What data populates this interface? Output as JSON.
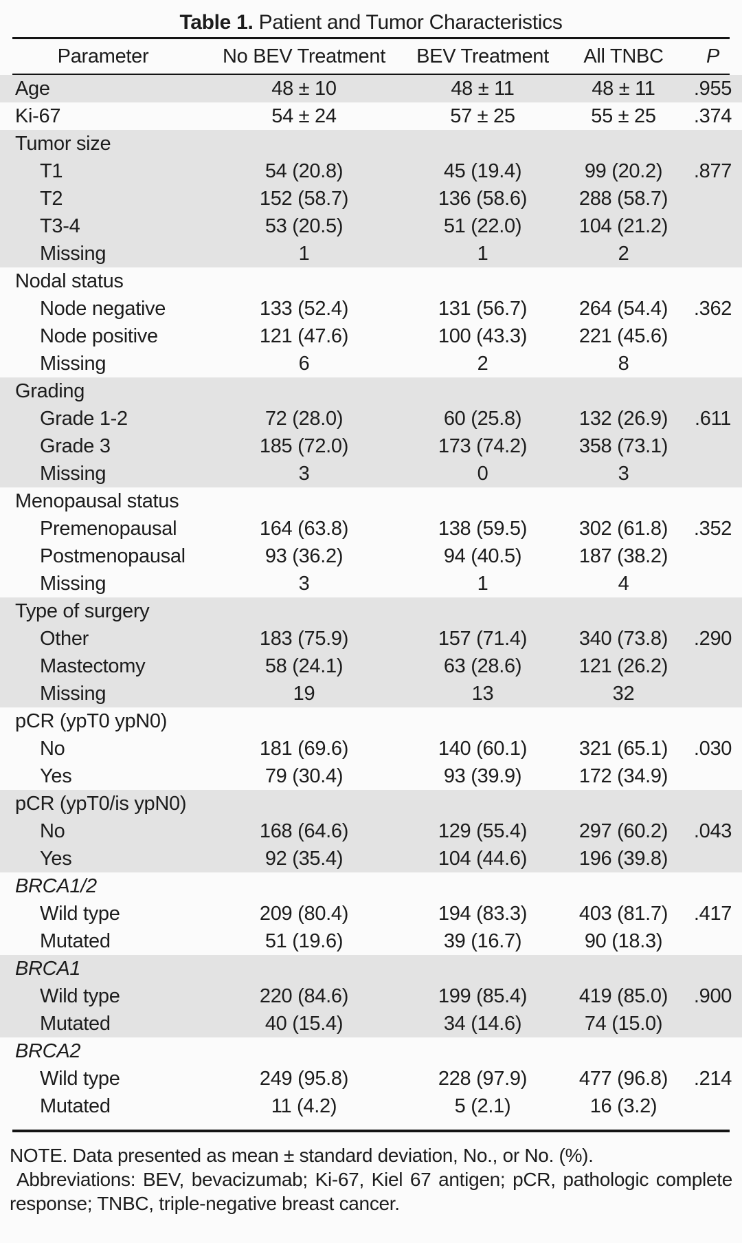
{
  "title": {
    "label": "Table 1.",
    "text": "Patient and Tumor Characteristics"
  },
  "columns": [
    "Parameter",
    "No BEV Treatment",
    "BEV Treatment",
    "All TNBC",
    "P"
  ],
  "colors": {
    "row_shade": "#e3e3e3",
    "text": "#1c1c1c",
    "rule": "#141414",
    "background": "#fbfbfb"
  },
  "rows": [
    {
      "label": "Age",
      "indent": 0,
      "italic": false,
      "shaded": true,
      "values": [
        "48 ± 10",
        "48 ± 11",
        "48 ± 11"
      ],
      "p": ".955"
    },
    {
      "label": "Ki-67",
      "indent": 0,
      "italic": false,
      "shaded": false,
      "values": [
        "54 ± 24",
        "57 ± 25",
        "55 ± 25"
      ],
      "p": ".374"
    },
    {
      "label": "Tumor size",
      "indent": 0,
      "italic": false,
      "shaded": true,
      "values": [
        "",
        "",
        ""
      ],
      "p": ""
    },
    {
      "label": "T1",
      "indent": 1,
      "italic": false,
      "shaded": true,
      "values": [
        "54 (20.8)",
        "45 (19.4)",
        "99 (20.2)"
      ],
      "p": ".877"
    },
    {
      "label": "T2",
      "indent": 1,
      "italic": false,
      "shaded": true,
      "values": [
        "152 (58.7)",
        "136 (58.6)",
        "288 (58.7)"
      ],
      "p": ""
    },
    {
      "label": "T3-4",
      "indent": 1,
      "italic": false,
      "shaded": true,
      "values": [
        "53 (20.5)",
        "51 (22.0)",
        "104 (21.2)"
      ],
      "p": ""
    },
    {
      "label": "Missing",
      "indent": 1,
      "italic": false,
      "shaded": true,
      "values": [
        "1",
        "1",
        "2"
      ],
      "p": ""
    },
    {
      "label": "Nodal status",
      "indent": 0,
      "italic": false,
      "shaded": false,
      "values": [
        "",
        "",
        ""
      ],
      "p": ""
    },
    {
      "label": "Node negative",
      "indent": 1,
      "italic": false,
      "shaded": false,
      "values": [
        "133 (52.4)",
        "131 (56.7)",
        "264 (54.4)"
      ],
      "p": ".362"
    },
    {
      "label": "Node positive",
      "indent": 1,
      "italic": false,
      "shaded": false,
      "values": [
        "121 (47.6)",
        "100 (43.3)",
        "221 (45.6)"
      ],
      "p": ""
    },
    {
      "label": "Missing",
      "indent": 1,
      "italic": false,
      "shaded": false,
      "values": [
        "6",
        "2",
        "8"
      ],
      "p": ""
    },
    {
      "label": "Grading",
      "indent": 0,
      "italic": false,
      "shaded": true,
      "values": [
        "",
        "",
        ""
      ],
      "p": ""
    },
    {
      "label": "Grade 1-2",
      "indent": 1,
      "italic": false,
      "shaded": true,
      "values": [
        "72 (28.0)",
        "60 (25.8)",
        "132 (26.9)"
      ],
      "p": ".611"
    },
    {
      "label": "Grade 3",
      "indent": 1,
      "italic": false,
      "shaded": true,
      "values": [
        "185 (72.0)",
        "173 (74.2)",
        "358 (73.1)"
      ],
      "p": ""
    },
    {
      "label": "Missing",
      "indent": 1,
      "italic": false,
      "shaded": true,
      "values": [
        "3",
        "0",
        "3"
      ],
      "p": ""
    },
    {
      "label": "Menopausal status",
      "indent": 0,
      "italic": false,
      "shaded": false,
      "values": [
        "",
        "",
        ""
      ],
      "p": ""
    },
    {
      "label": "Premenopausal",
      "indent": 1,
      "italic": false,
      "shaded": false,
      "values": [
        "164 (63.8)",
        "138 (59.5)",
        "302 (61.8)"
      ],
      "p": ".352"
    },
    {
      "label": "Postmenopausal",
      "indent": 1,
      "italic": false,
      "shaded": false,
      "values": [
        "93 (36.2)",
        "94 (40.5)",
        "187 (38.2)"
      ],
      "p": ""
    },
    {
      "label": "Missing",
      "indent": 1,
      "italic": false,
      "shaded": false,
      "values": [
        "3",
        "1",
        "4"
      ],
      "p": ""
    },
    {
      "label": "Type of surgery",
      "indent": 0,
      "italic": false,
      "shaded": true,
      "values": [
        "",
        "",
        ""
      ],
      "p": ""
    },
    {
      "label": "Other",
      "indent": 1,
      "italic": false,
      "shaded": true,
      "values": [
        "183 (75.9)",
        "157 (71.4)",
        "340 (73.8)"
      ],
      "p": ".290"
    },
    {
      "label": "Mastectomy",
      "indent": 1,
      "italic": false,
      "shaded": true,
      "values": [
        "58 (24.1)",
        "63 (28.6)",
        "121 (26.2)"
      ],
      "p": ""
    },
    {
      "label": "Missing",
      "indent": 1,
      "italic": false,
      "shaded": true,
      "values": [
        "19",
        "13",
        "32"
      ],
      "p": ""
    },
    {
      "label": "pCR (ypT0 ypN0)",
      "indent": 0,
      "italic": false,
      "shaded": false,
      "values": [
        "",
        "",
        ""
      ],
      "p": ""
    },
    {
      "label": "No",
      "indent": 1,
      "italic": false,
      "shaded": false,
      "values": [
        "181 (69.6)",
        "140 (60.1)",
        "321 (65.1)"
      ],
      "p": ".030"
    },
    {
      "label": "Yes",
      "indent": 1,
      "italic": false,
      "shaded": false,
      "values": [
        "79 (30.4)",
        "93 (39.9)",
        "172 (34.9)"
      ],
      "p": ""
    },
    {
      "label": "pCR (ypT0/is ypN0)",
      "indent": 0,
      "italic": false,
      "shaded": true,
      "values": [
        "",
        "",
        ""
      ],
      "p": ""
    },
    {
      "label": "No",
      "indent": 1,
      "italic": false,
      "shaded": true,
      "values": [
        "168 (64.6)",
        "129 (55.4)",
        "297 (60.2)"
      ],
      "p": ".043"
    },
    {
      "label": "Yes",
      "indent": 1,
      "italic": false,
      "shaded": true,
      "values": [
        "92 (35.4)",
        "104 (44.6)",
        "196 (39.8)"
      ],
      "p": ""
    },
    {
      "label": "BRCA1/2",
      "indent": 0,
      "italic": true,
      "shaded": false,
      "values": [
        "",
        "",
        ""
      ],
      "p": ""
    },
    {
      "label": "Wild type",
      "indent": 1,
      "italic": false,
      "shaded": false,
      "values": [
        "209 (80.4)",
        "194 (83.3)",
        "403 (81.7)"
      ],
      "p": ".417"
    },
    {
      "label": "Mutated",
      "indent": 1,
      "italic": false,
      "shaded": false,
      "values": [
        "51 (19.6)",
        "39 (16.7)",
        "90 (18.3)"
      ],
      "p": ""
    },
    {
      "label": "BRCA1",
      "indent": 0,
      "italic": true,
      "shaded": true,
      "values": [
        "",
        "",
        ""
      ],
      "p": ""
    },
    {
      "label": "Wild type",
      "indent": 1,
      "italic": false,
      "shaded": true,
      "values": [
        "220 (84.6)",
        "199 (85.4)",
        "419 (85.0)"
      ],
      "p": ".900"
    },
    {
      "label": "Mutated",
      "indent": 1,
      "italic": false,
      "shaded": true,
      "values": [
        "40 (15.4)",
        "34 (14.6)",
        "74 (15.0)"
      ],
      "p": ""
    },
    {
      "label": "BRCA2",
      "indent": 0,
      "italic": true,
      "shaded": false,
      "values": [
        "",
        "",
        ""
      ],
      "p": ""
    },
    {
      "label": "Wild type",
      "indent": 1,
      "italic": false,
      "shaded": false,
      "values": [
        "249 (95.8)",
        "228 (97.9)",
        "477 (96.8)"
      ],
      "p": ".214"
    },
    {
      "label": "Mutated",
      "indent": 1,
      "italic": false,
      "shaded": false,
      "values": [
        "11 (4.2)",
        "5 (2.1)",
        "16 (3.2)"
      ],
      "p": ""
    }
  ],
  "note": {
    "note_line": "NOTE. Data presented as mean ± standard deviation, No., or No. (%).",
    "abbreviations": "Abbreviations: BEV, bevacizumab; Ki-67, Kiel 67 antigen; pCR, pathologic complete response; TNBC, triple-negative breast cancer."
  }
}
